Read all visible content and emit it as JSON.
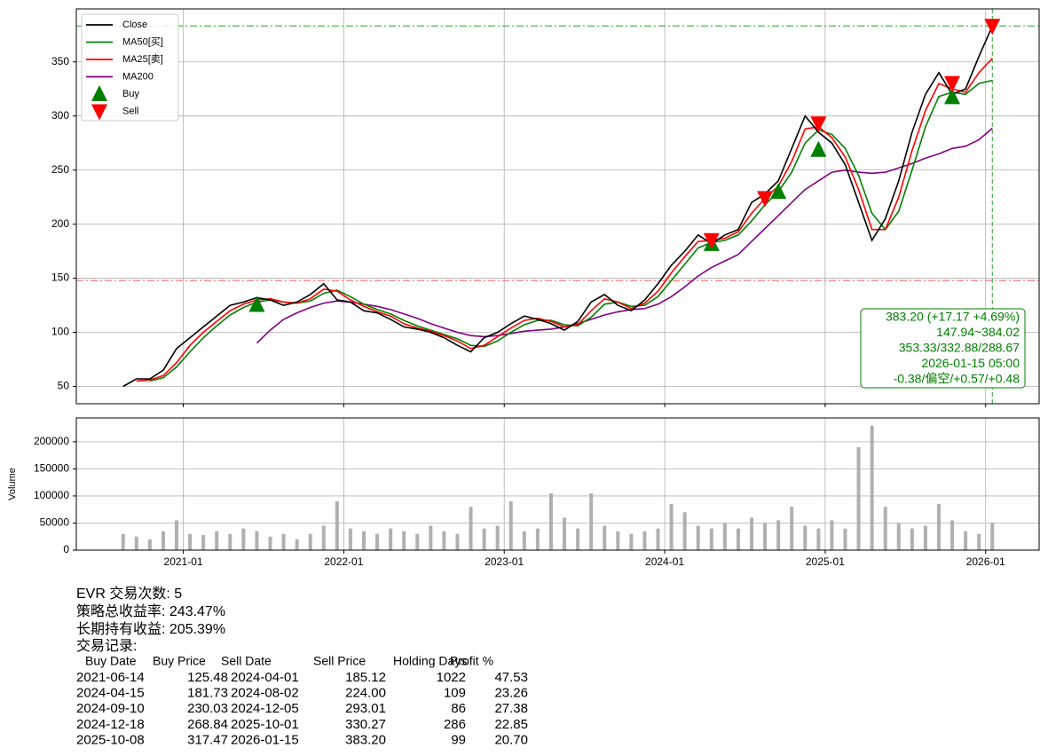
{
  "chart_data": [
    {
      "type": "line",
      "x": [
        "2020-08",
        "2020-09",
        "2020-10",
        "2020-11",
        "2020-12",
        "2021-01",
        "2021-02",
        "2021-03",
        "2021-04",
        "2021-05",
        "2021-06",
        "2021-07",
        "2021-08",
        "2021-09",
        "2021-10",
        "2021-11",
        "2021-12",
        "2022-01",
        "2022-02",
        "2022-03",
        "2022-04",
        "2022-05",
        "2022-06",
        "2022-07",
        "2022-08",
        "2022-09",
        "2022-10",
        "2022-11",
        "2022-12",
        "2023-01",
        "2023-02",
        "2023-03",
        "2023-04",
        "2023-05",
        "2023-06",
        "2023-07",
        "2023-08",
        "2023-09",
        "2023-10",
        "2023-11",
        "2023-12",
        "2024-01",
        "2024-02",
        "2024-03",
        "2024-04",
        "2024-05",
        "2024-06",
        "2024-07",
        "2024-08",
        "2024-09",
        "2024-10",
        "2024-11",
        "2024-12",
        "2025-01",
        "2025-02",
        "2025-03",
        "2025-04",
        "2025-05",
        "2025-06",
        "2025-07",
        "2025-08",
        "2025-09",
        "2025-10",
        "2025-11",
        "2025-12",
        "2026-01"
      ],
      "series": [
        {
          "name": "Close",
          "color": "#000000",
          "values": [
            50,
            57,
            57,
            65,
            85,
            95,
            105,
            115,
            125,
            128,
            132,
            130,
            125,
            128,
            135,
            145,
            130,
            128,
            120,
            118,
            112,
            105,
            103,
            100,
            95,
            88,
            82,
            95,
            100,
            108,
            115,
            112,
            108,
            102,
            110,
            128,
            135,
            125,
            120,
            130,
            145,
            162,
            175,
            190,
            182,
            190,
            195,
            220,
            228,
            240,
            270,
            300,
            285,
            275,
            255,
            220,
            185,
            205,
            240,
            285,
            320,
            340,
            320,
            325,
            355,
            383.2
          ]
        },
        {
          "name": "MA50[买]",
          "color": "#008000",
          "values": [
            null,
            null,
            55,
            58,
            68,
            82,
            95,
            106,
            116,
            123,
            128,
            130,
            128,
            127,
            129,
            136,
            139,
            133,
            126,
            121,
            117,
            111,
            106,
            102,
            98,
            94,
            88,
            87,
            92,
            100,
            107,
            111,
            111,
            107,
            106,
            114,
            126,
            128,
            124,
            125,
            133,
            148,
            163,
            178,
            183,
            185,
            190,
            203,
            218,
            230,
            248,
            275,
            287,
            283,
            270,
            245,
            210,
            195,
            212,
            250,
            290,
            318,
            322,
            320,
            330,
            332.88
          ]
        },
        {
          "name": "MA25[卖]",
          "color": "#ff0000",
          "values": [
            null,
            55,
            56,
            60,
            72,
            88,
            100,
            110,
            120,
            126,
            130,
            131,
            128,
            127,
            131,
            140,
            138,
            130,
            124,
            119,
            115,
            108,
            104,
            101,
            97,
            92,
            85,
            88,
            96,
            104,
            111,
            113,
            110,
            105,
            107,
            120,
            131,
            128,
            122,
            127,
            138,
            155,
            170,
            184,
            185,
            187,
            193,
            210,
            224,
            235,
            258,
            288,
            290,
            280,
            262,
            232,
            195,
            195,
            225,
            268,
            305,
            330,
            325,
            322,
            340,
            353.33
          ]
        },
        {
          "name": "MA200",
          "color": "#800080",
          "values": [
            null,
            null,
            null,
            null,
            null,
            null,
            null,
            null,
            null,
            null,
            90,
            102,
            112,
            118,
            123,
            127,
            129,
            128,
            126,
            124,
            121,
            117,
            113,
            108,
            104,
            100,
            97,
            96,
            97,
            99,
            101,
            102,
            103,
            105,
            108,
            112,
            116,
            119,
            121,
            122,
            126,
            133,
            142,
            152,
            160,
            166,
            172,
            184,
            196,
            208,
            220,
            232,
            240,
            248,
            250,
            248,
            247,
            248,
            252,
            256,
            261,
            265,
            270,
            272,
            278,
            288.67
          ]
        }
      ],
      "markers": [
        {
          "name": "Buy",
          "color": "#008000",
          "shape": "up",
          "x": [
            "2021-06",
            "2024-04",
            "2024-09",
            "2024-12",
            "2025-10"
          ],
          "values": [
            125.48,
            181.73,
            230.03,
            268.84,
            317.47
          ]
        },
        {
          "name": "Sell",
          "color": "#ff0000",
          "shape": "down",
          "x": [
            "2024-04",
            "2024-08",
            "2024-12",
            "2025-10",
            "2026-01"
          ],
          "values": [
            185.12,
            224.0,
            293.01,
            330.27,
            383.2
          ]
        }
      ],
      "hlines": [
        {
          "value": 383.2,
          "color": "#2ca02c"
        },
        {
          "value": 147.94,
          "color": "#ff5555"
        }
      ],
      "vline": {
        "x": "2026-01",
        "color": "#2ca02c"
      },
      "annotation": [
        "383.20 (+17.17 +4.69%)",
        "147.94~384.02",
        "353.33/332.88/288.67",
        "2026-01-15 05:00",
        "-0.38/偏空/+0.57/+0.48"
      ],
      "xlim": [
        "2020-05",
        "2026-05"
      ],
      "xticks": [
        "2021-01",
        "2022-01",
        "2023-01",
        "2024-01",
        "2025-01",
        "2026-01"
      ],
      "xtick_labels": false,
      "ylim": [
        34,
        399
      ],
      "yticks": [
        50,
        100,
        150,
        200,
        250,
        300,
        350
      ],
      "grid": true,
      "legend": "upper left"
    },
    {
      "type": "bar",
      "y_label": "Volume",
      "x": [
        "2020-08",
        "2020-09",
        "2020-10",
        "2020-11",
        "2020-12",
        "2021-01",
        "2021-02",
        "2021-03",
        "2021-04",
        "2021-05",
        "2021-06",
        "2021-07",
        "2021-08",
        "2021-09",
        "2021-10",
        "2021-11",
        "2021-12",
        "2022-01",
        "2022-02",
        "2022-03",
        "2022-04",
        "2022-05",
        "2022-06",
        "2022-07",
        "2022-08",
        "2022-09",
        "2022-10",
        "2022-11",
        "2022-12",
        "2023-01",
        "2023-02",
        "2023-03",
        "2023-04",
        "2023-05",
        "2023-06",
        "2023-07",
        "2023-08",
        "2023-09",
        "2023-10",
        "2023-11",
        "2023-12",
        "2024-01",
        "2024-02",
        "2024-03",
        "2024-04",
        "2024-05",
        "2024-06",
        "2024-07",
        "2024-08",
        "2024-09",
        "2024-10",
        "2024-11",
        "2024-12",
        "2025-01",
        "2025-02",
        "2025-03",
        "2025-04",
        "2025-05",
        "2025-06",
        "2025-07",
        "2025-08",
        "2025-09",
        "2025-10",
        "2025-11",
        "2025-12",
        "2026-01"
      ],
      "values": [
        30000,
        25000,
        20000,
        35000,
        55000,
        30000,
        28000,
        35000,
        30000,
        40000,
        35000,
        25000,
        30000,
        20000,
        30000,
        45000,
        90000,
        40000,
        35000,
        30000,
        40000,
        35000,
        30000,
        45000,
        35000,
        30000,
        80000,
        40000,
        45000,
        90000,
        35000,
        40000,
        105000,
        60000,
        40000,
        105000,
        45000,
        35000,
        30000,
        35000,
        40000,
        85000,
        70000,
        45000,
        40000,
        50000,
        40000,
        60000,
        50000,
        55000,
        80000,
        45000,
        40000,
        55000,
        40000,
        190000,
        230000,
        80000,
        50000,
        40000,
        45000,
        85000,
        55000,
        35000,
        30000,
        50000
      ],
      "color": "#b0b0b0",
      "xlim": [
        "2020-05",
        "2026-05"
      ],
      "xticks": [
        "2021-01",
        "2022-01",
        "2023-01",
        "2024-01",
        "2025-01",
        "2026-01"
      ],
      "xtick_labels": true,
      "ylim": [
        0,
        244000
      ],
      "yticks": [
        0,
        50000,
        100000,
        150000,
        200000
      ],
      "grid": true
    }
  ],
  "report": {
    "lines": [
      "EVR 交易次数: 5",
      "策略总收益率: 243.47%",
      "长期持有收益: 205.39%",
      "交易记录:"
    ],
    "table": {
      "header": [
        "Buy Date",
        "Buy Price",
        "Sell Date",
        "Sell Price",
        "Holding Days",
        "Profit %"
      ],
      "rows": [
        [
          "2021-06-14",
          "125.48",
          "2024-04-01",
          "185.12",
          "1022",
          "47.53"
        ],
        [
          "2024-04-15",
          "181.73",
          "2024-08-02",
          "224.00",
          "109",
          "23.26"
        ],
        [
          "2024-09-10",
          "230.03",
          "2024-12-05",
          "293.01",
          "86",
          "27.38"
        ],
        [
          "2024-12-18",
          "268.84",
          "2025-10-01",
          "330.27",
          "286",
          "22.85"
        ],
        [
          "2025-10-08",
          "317.47",
          "2026-01-15",
          "383.20",
          "99",
          "20.70"
        ]
      ]
    }
  }
}
